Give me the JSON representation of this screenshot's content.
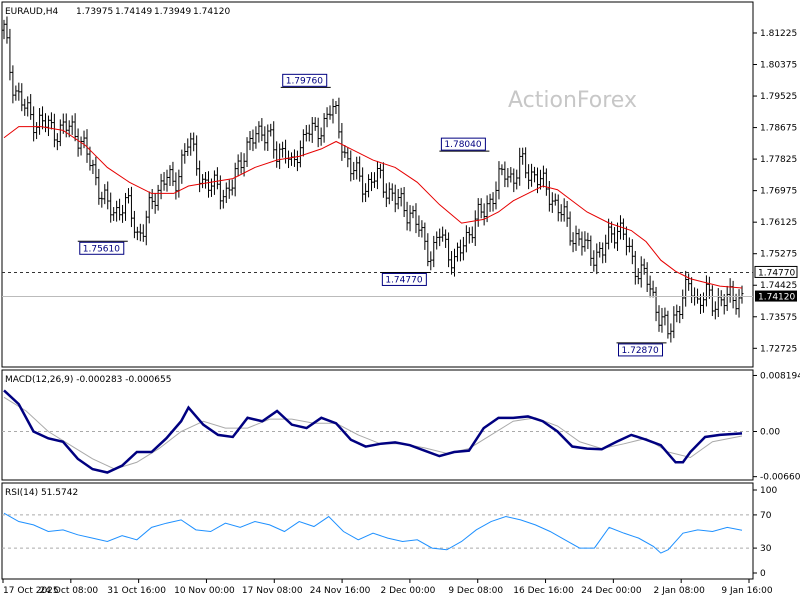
{
  "watermark": "ActionForex",
  "chart_data": {
    "type": "line",
    "symbol": "EURAUD,H4",
    "ohlc": [
      "1.73975",
      "1.74149",
      "1.73949",
      "1.74120"
    ],
    "x_ticks": [
      "17 Oct 2025",
      "24 Oct 08:00",
      "31 Oct 16:00",
      "10 Nov 00:00",
      "17 Nov 08:00",
      "24 Nov 16:00",
      "2 Dec 00:00",
      "9 Dec 08:00",
      "16 Dec 16:00",
      "24 Dec 00:00",
      "2 Jan 08:00",
      "9 Jan 16:00"
    ],
    "price": {
      "ylim": [
        1.72275,
        1.81575
      ],
      "y_ticks": [
        "1.81225",
        "1.80375",
        "1.79525",
        "1.78675",
        "1.77825",
        "1.76975",
        "1.76125",
        "1.75275",
        "1.74425",
        "1.73575",
        "1.72725"
      ],
      "last_price": "1.74120",
      "level_label": "1.74770",
      "level": 1.7477,
      "annotations": [
        {
          "text": "1.79760",
          "x": 0.44,
          "y": 1.7976
        },
        {
          "text": "1.75610",
          "x": 0.165,
          "y": 1.7561
        },
        {
          "text": "1.74770",
          "x": 0.575,
          "y": 1.7477
        },
        {
          "text": "1.78040",
          "x": 0.655,
          "y": 1.7804
        },
        {
          "text": "1.72870",
          "x": 0.895,
          "y": 1.7287
        }
      ],
      "close": [
        [
          0,
          1.813
        ],
        [
          0.01,
          1.8
        ],
        [
          0.02,
          1.795
        ],
        [
          0.03,
          1.791
        ],
        [
          0.04,
          1.789
        ],
        [
          0.05,
          1.788
        ],
        [
          0.06,
          1.787
        ],
        [
          0.07,
          1.786
        ],
        [
          0.08,
          1.786
        ],
        [
          0.09,
          1.787
        ],
        [
          0.1,
          1.785
        ],
        [
          0.11,
          1.78
        ],
        [
          0.12,
          1.776
        ],
        [
          0.13,
          1.77
        ],
        [
          0.14,
          1.765
        ],
        [
          0.15,
          1.764
        ],
        [
          0.16,
          1.766
        ],
        [
          0.17,
          1.765
        ],
        [
          0.18,
          1.758
        ],
        [
          0.19,
          1.76
        ],
        [
          0.2,
          1.766
        ],
        [
          0.21,
          1.771
        ],
        [
          0.22,
          1.774
        ],
        [
          0.23,
          1.77
        ],
        [
          0.24,
          1.778
        ],
        [
          0.25,
          1.783
        ],
        [
          0.26,
          1.778
        ],
        [
          0.27,
          1.772
        ],
        [
          0.28,
          1.77
        ],
        [
          0.29,
          1.772
        ],
        [
          0.3,
          1.768
        ],
        [
          0.31,
          1.771
        ],
        [
          0.32,
          1.779
        ],
        [
          0.33,
          1.781
        ],
        [
          0.34,
          1.784
        ],
        [
          0.35,
          1.787
        ],
        [
          0.36,
          1.784
        ],
        [
          0.37,
          1.778
        ],
        [
          0.38,
          1.783
        ],
        [
          0.39,
          1.775
        ],
        [
          0.4,
          1.78
        ],
        [
          0.41,
          1.788
        ],
        [
          0.42,
          1.784
        ],
        [
          0.43,
          1.786
        ],
        [
          0.44,
          1.793
        ],
        [
          0.45,
          1.789
        ],
        [
          0.46,
          1.781
        ],
        [
          0.47,
          1.776
        ],
        [
          0.48,
          1.773
        ],
        [
          0.49,
          1.771
        ],
        [
          0.5,
          1.773
        ],
        [
          0.51,
          1.773
        ],
        [
          0.52,
          1.77
        ],
        [
          0.53,
          1.767
        ],
        [
          0.54,
          1.766
        ],
        [
          0.55,
          1.764
        ],
        [
          0.56,
          1.76
        ],
        [
          0.57,
          1.756
        ],
        [
          0.58,
          1.752
        ],
        [
          0.59,
          1.758
        ],
        [
          0.6,
          1.755
        ],
        [
          0.61,
          1.75
        ],
        [
          0.62,
          1.754
        ],
        [
          0.63,
          1.759
        ],
        [
          0.64,
          1.762
        ],
        [
          0.65,
          1.764
        ],
        [
          0.66,
          1.768
        ],
        [
          0.67,
          1.772
        ],
        [
          0.68,
          1.775
        ],
        [
          0.69,
          1.773
        ],
        [
          0.7,
          1.777
        ],
        [
          0.71,
          1.775
        ],
        [
          0.72,
          1.774
        ],
        [
          0.73,
          1.771
        ],
        [
          0.74,
          1.769
        ],
        [
          0.75,
          1.765
        ],
        [
          0.76,
          1.762
        ],
        [
          0.77,
          1.758
        ],
        [
          0.78,
          1.756
        ],
        [
          0.79,
          1.754
        ],
        [
          0.8,
          1.753
        ],
        [
          0.81,
          1.752
        ],
        [
          0.82,
          1.758
        ],
        [
          0.83,
          1.76
        ],
        [
          0.84,
          1.757
        ],
        [
          0.85,
          1.752
        ],
        [
          0.86,
          1.748
        ],
        [
          0.87,
          1.746
        ],
        [
          0.88,
          1.741
        ],
        [
          0.89,
          1.735
        ],
        [
          0.9,
          1.731
        ],
        [
          0.91,
          1.737
        ],
        [
          0.92,
          1.741
        ],
        [
          0.93,
          1.744
        ],
        [
          0.94,
          1.74
        ],
        [
          0.95,
          1.742
        ],
        [
          0.96,
          1.739
        ],
        [
          0.97,
          1.741
        ],
        [
          0.98,
          1.74
        ],
        [
          0.99,
          1.741
        ],
        [
          1.0,
          1.7412
        ]
      ],
      "ma": [
        [
          0,
          1.784
        ],
        [
          0.02,
          1.787
        ],
        [
          0.05,
          1.787
        ],
        [
          0.08,
          1.786
        ],
        [
          0.11,
          1.782
        ],
        [
          0.14,
          1.776
        ],
        [
          0.17,
          1.772
        ],
        [
          0.2,
          1.769
        ],
        [
          0.23,
          1.769
        ],
        [
          0.25,
          1.771
        ],
        [
          0.28,
          1.772
        ],
        [
          0.31,
          1.773
        ],
        [
          0.34,
          1.776
        ],
        [
          0.37,
          1.778
        ],
        [
          0.4,
          1.779
        ],
        [
          0.43,
          1.781
        ],
        [
          0.45,
          1.783
        ],
        [
          0.47,
          1.781
        ],
        [
          0.5,
          1.778
        ],
        [
          0.53,
          1.776
        ],
        [
          0.56,
          1.772
        ],
        [
          0.59,
          1.766
        ],
        [
          0.62,
          1.761
        ],
        [
          0.65,
          1.762
        ],
        [
          0.67,
          1.764
        ],
        [
          0.69,
          1.767
        ],
        [
          0.71,
          1.769
        ],
        [
          0.73,
          1.771
        ],
        [
          0.75,
          1.77
        ],
        [
          0.77,
          1.767
        ],
        [
          0.79,
          1.764
        ],
        [
          0.82,
          1.761
        ],
        [
          0.85,
          1.759
        ],
        [
          0.87,
          1.756
        ],
        [
          0.89,
          1.751
        ],
        [
          0.91,
          1.748
        ],
        [
          0.93,
          1.746
        ],
        [
          0.95,
          1.745
        ],
        [
          0.97,
          1.744
        ],
        [
          1.0,
          1.7435
        ]
      ]
    },
    "macd": {
      "label": "MACD(12,26,9) -0.000283 -0.000655",
      "ylim": [
        -0.0068,
        0.0087
      ],
      "y_ticks": [
        "0.008194",
        "0.00",
        "-0.006604"
      ],
      "y_tick_values": [
        0.008194,
        0.0,
        -0.006604
      ],
      "zero_label": "0.00",
      "main": [
        [
          0,
          0.006
        ],
        [
          0.02,
          0.004
        ],
        [
          0.04,
          0.0
        ],
        [
          0.06,
          -0.001
        ],
        [
          0.08,
          -0.0015
        ],
        [
          0.1,
          -0.004
        ],
        [
          0.12,
          -0.0055
        ],
        [
          0.14,
          -0.006
        ],
        [
          0.16,
          -0.005
        ],
        [
          0.18,
          -0.003
        ],
        [
          0.2,
          -0.003
        ],
        [
          0.22,
          -0.001
        ],
        [
          0.24,
          0.0015
        ],
        [
          0.25,
          0.0035
        ],
        [
          0.27,
          0.001
        ],
        [
          0.29,
          -0.0005
        ],
        [
          0.31,
          -0.0008
        ],
        [
          0.33,
          0.002
        ],
        [
          0.35,
          0.0015
        ],
        [
          0.37,
          0.003
        ],
        [
          0.39,
          0.001
        ],
        [
          0.41,
          0.0005
        ],
        [
          0.43,
          0.002
        ],
        [
          0.45,
          0.0012
        ],
        [
          0.47,
          -0.0012
        ],
        [
          0.49,
          -0.0022
        ],
        [
          0.51,
          -0.0018
        ],
        [
          0.53,
          -0.0016
        ],
        [
          0.55,
          -0.002
        ],
        [
          0.57,
          -0.0028
        ],
        [
          0.59,
          -0.0036
        ],
        [
          0.61,
          -0.003
        ],
        [
          0.63,
          -0.0028
        ],
        [
          0.65,
          0.0005
        ],
        [
          0.67,
          0.002
        ],
        [
          0.69,
          0.002
        ],
        [
          0.71,
          0.0022
        ],
        [
          0.73,
          0.0015
        ],
        [
          0.75,
          0.0
        ],
        [
          0.77,
          -0.0022
        ],
        [
          0.79,
          -0.0025
        ],
        [
          0.81,
          -0.0026
        ],
        [
          0.83,
          -0.0015
        ],
        [
          0.85,
          -0.0005
        ],
        [
          0.87,
          -0.0012
        ],
        [
          0.89,
          -0.002
        ],
        [
          0.91,
          -0.0045
        ],
        [
          0.92,
          -0.0045
        ],
        [
          0.93,
          -0.003
        ],
        [
          0.95,
          -0.0008
        ],
        [
          0.97,
          -0.0005
        ],
        [
          1.0,
          -0.000283
        ]
      ],
      "signal": [
        [
          0,
          0.005
        ],
        [
          0.03,
          0.003
        ],
        [
          0.06,
          0.0
        ],
        [
          0.09,
          -0.002
        ],
        [
          0.12,
          -0.004
        ],
        [
          0.15,
          -0.0055
        ],
        [
          0.18,
          -0.0045
        ],
        [
          0.21,
          -0.0025
        ],
        [
          0.24,
          0.0
        ],
        [
          0.27,
          0.0015
        ],
        [
          0.3,
          0.0005
        ],
        [
          0.33,
          0.0005
        ],
        [
          0.36,
          0.0018
        ],
        [
          0.39,
          0.0018
        ],
        [
          0.42,
          0.0012
        ],
        [
          0.45,
          0.0012
        ],
        [
          0.48,
          -0.0005
        ],
        [
          0.51,
          -0.0018
        ],
        [
          0.54,
          -0.0018
        ],
        [
          0.57,
          -0.0024
        ],
        [
          0.6,
          -0.0032
        ],
        [
          0.63,
          -0.0025
        ],
        [
          0.66,
          -0.0005
        ],
        [
          0.69,
          0.0015
        ],
        [
          0.72,
          0.002
        ],
        [
          0.75,
          0.0008
        ],
        [
          0.78,
          -0.0015
        ],
        [
          0.81,
          -0.0025
        ],
        [
          0.84,
          -0.0018
        ],
        [
          0.87,
          -0.001
        ],
        [
          0.9,
          -0.003
        ],
        [
          0.93,
          -0.0038
        ],
        [
          0.96,
          -0.0015
        ],
        [
          1.0,
          -0.000655
        ]
      ]
    },
    "rsi": {
      "label": "RSI(14) 51.5742",
      "ylim": [
        0,
        100
      ],
      "y_ticks": [
        "100",
        "70",
        "30",
        "0"
      ],
      "y_tick_values": [
        100,
        70,
        30,
        0
      ],
      "values": [
        [
          0,
          72
        ],
        [
          0.02,
          62
        ],
        [
          0.04,
          58
        ],
        [
          0.06,
          50
        ],
        [
          0.08,
          52
        ],
        [
          0.1,
          46
        ],
        [
          0.12,
          42
        ],
        [
          0.14,
          38
        ],
        [
          0.16,
          45
        ],
        [
          0.18,
          40
        ],
        [
          0.2,
          55
        ],
        [
          0.22,
          60
        ],
        [
          0.24,
          64
        ],
        [
          0.26,
          52
        ],
        [
          0.28,
          50
        ],
        [
          0.3,
          60
        ],
        [
          0.32,
          55
        ],
        [
          0.34,
          62
        ],
        [
          0.36,
          58
        ],
        [
          0.38,
          50
        ],
        [
          0.4,
          62
        ],
        [
          0.42,
          56
        ],
        [
          0.44,
          68
        ],
        [
          0.46,
          50
        ],
        [
          0.48,
          40
        ],
        [
          0.5,
          48
        ],
        [
          0.52,
          42
        ],
        [
          0.54,
          38
        ],
        [
          0.56,
          40
        ],
        [
          0.58,
          30
        ],
        [
          0.6,
          28
        ],
        [
          0.62,
          38
        ],
        [
          0.64,
          52
        ],
        [
          0.66,
          62
        ],
        [
          0.68,
          68
        ],
        [
          0.7,
          64
        ],
        [
          0.72,
          58
        ],
        [
          0.74,
          50
        ],
        [
          0.76,
          40
        ],
        [
          0.78,
          30
        ],
        [
          0.8,
          30
        ],
        [
          0.82,
          55
        ],
        [
          0.84,
          48
        ],
        [
          0.86,
          42
        ],
        [
          0.88,
          32
        ],
        [
          0.89,
          24
        ],
        [
          0.9,
          28
        ],
        [
          0.92,
          48
        ],
        [
          0.94,
          52
        ],
        [
          0.96,
          50
        ],
        [
          0.98,
          55
        ],
        [
          1.0,
          51.57
        ]
      ]
    }
  }
}
